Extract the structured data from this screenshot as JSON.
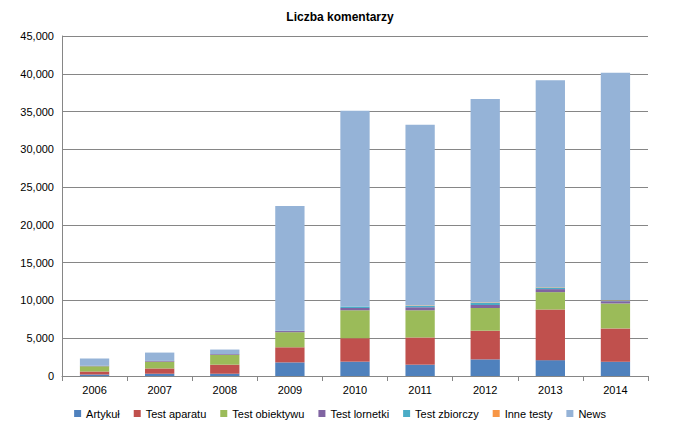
{
  "chart_data": {
    "type": "bar",
    "title": "Liczba komentarzy",
    "categories": [
      "2006",
      "2007",
      "2008",
      "2009",
      "2010",
      "2011",
      "2012",
      "2013",
      "2014"
    ],
    "series": [
      {
        "name": "Artykuł",
        "color": "#4F81BD",
        "values": [
          200,
          300,
          300,
          1800,
          1900,
          1500,
          2200,
          2100,
          1900
        ]
      },
      {
        "name": "Test aparatu",
        "color": "#C0504D",
        "values": [
          400,
          700,
          1200,
          2000,
          3100,
          3600,
          3800,
          6700,
          4400
        ]
      },
      {
        "name": "Test obiektywu",
        "color": "#9BBB59",
        "values": [
          700,
          900,
          1300,
          2000,
          3700,
          3600,
          3000,
          2300,
          3300
        ]
      },
      {
        "name": "Test lornetki",
        "color": "#8064A2",
        "values": [
          50,
          100,
          100,
          150,
          300,
          400,
          400,
          400,
          300
        ]
      },
      {
        "name": "Test zbiorczy",
        "color": "#4BACC6",
        "values": [
          0,
          0,
          0,
          50,
          200,
          200,
          300,
          200,
          100
        ]
      },
      {
        "name": "Inne testy",
        "color": "#F79646",
        "values": [
          0,
          0,
          0,
          0,
          0,
          50,
          50,
          50,
          50
        ]
      },
      {
        "name": "News",
        "color": "#95B3D7",
        "values": [
          950,
          1100,
          600,
          16500,
          25900,
          23900,
          26900,
          27400,
          30100
        ]
      }
    ],
    "ylim": [
      0,
      45000
    ],
    "yticks": [
      0,
      5000,
      10000,
      15000,
      20000,
      25000,
      30000,
      35000,
      40000,
      45000
    ],
    "stacked": true,
    "grid": true,
    "legend": "bottom"
  }
}
